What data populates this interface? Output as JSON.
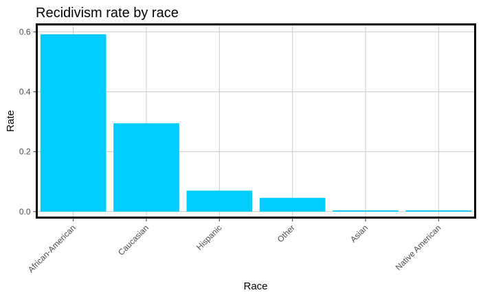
{
  "chart_data": {
    "type": "bar",
    "title": "Recidivism rate by race",
    "xlabel": "Race",
    "ylabel": "Rate",
    "categories": [
      "African-American",
      "Caucasian",
      "Hispanic",
      "Other",
      "Asian",
      "Native American"
    ],
    "values": [
      0.592,
      0.295,
      0.07,
      0.046,
      0.004,
      0.004
    ],
    "ylim": [
      -0.02,
      0.625
    ],
    "yticks": [
      0.0,
      0.2,
      0.4,
      0.6
    ],
    "ytick_labels": [
      "0.0",
      "0.2",
      "0.4",
      "0.6"
    ],
    "grid": true,
    "legend": "none",
    "bar_color": "#00ccff",
    "border_color": "#000000"
  }
}
